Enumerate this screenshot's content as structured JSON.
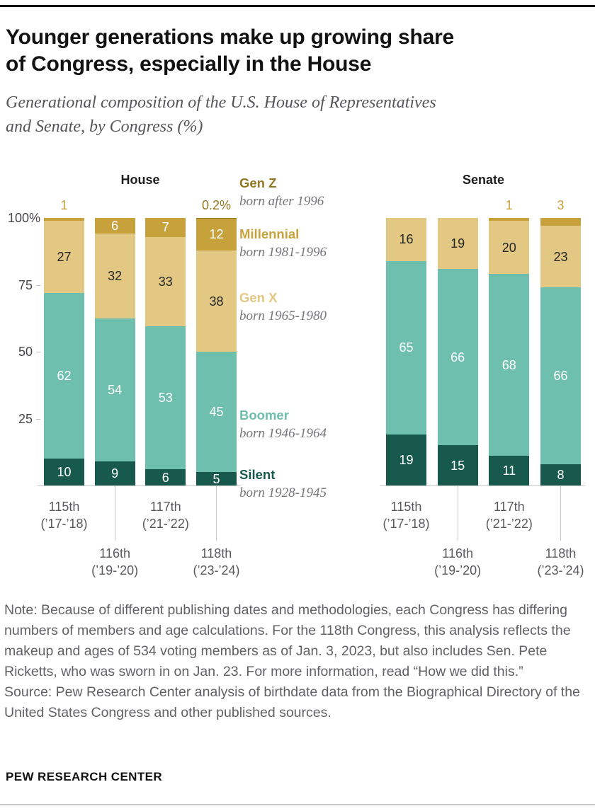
{
  "brand": "PEW RESEARCH CENTER",
  "header": {
    "title_lines": [
      "Younger generations make up growing share",
      "of Congress, especially in the House"
    ],
    "subtitle_lines": [
      "Generational composition of the U.S. House of Representatives",
      "and Senate, by Congress (%)"
    ]
  },
  "colors": {
    "silent": "#18594d",
    "boomer": "#6fbfae",
    "genx": "#e2c883",
    "millennial": "#c7a23c",
    "genz": "#927723",
    "label_dark": "#26262a",
    "axis": "#c8c8c8"
  },
  "legend": [
    {
      "key": "genz",
      "name": "Gen Z",
      "detail": "born after 1996"
    },
    {
      "key": "millennial",
      "name": "Millennial",
      "detail": "born 1981-1996"
    },
    {
      "key": "genx",
      "name": "Gen X",
      "detail": "born 1965-1980"
    },
    {
      "key": "boomer",
      "name": "Boomer",
      "detail": "born 1946-1964"
    },
    {
      "key": "silent",
      "name": "Silent",
      "detail": "born 1928-1945"
    }
  ],
  "chart_data": {
    "type": "bar",
    "stacked": true,
    "unit": "%",
    "ylim": [
      0,
      100
    ],
    "min_inside_label": 5,
    "yticks": [
      {
        "label": "100%",
        "value": 100
      },
      {
        "label": "75",
        "value": 75
      },
      {
        "label": "50",
        "value": 50
      },
      {
        "label": "25",
        "value": 25
      }
    ],
    "series_order": [
      "silent",
      "boomer",
      "genx",
      "millennial",
      "genz"
    ],
    "panels": [
      {
        "title": "House",
        "bars": [
          {
            "category": "115th",
            "years": "(’17-’18)",
            "staggered": false,
            "values": {
              "silent": 10,
              "boomer": 62,
              "genx": 27,
              "millennial": 1,
              "genz": 0
            },
            "top_label": {
              "text": "1",
              "series": "millennial"
            }
          },
          {
            "category": "116th",
            "years": "(’19-’20)",
            "staggered": true,
            "values": {
              "silent": 9,
              "boomer": 54,
              "genx": 32,
              "millennial": 6,
              "genz": 0
            }
          },
          {
            "category": "117th",
            "years": "(’21-’22)",
            "staggered": false,
            "values": {
              "silent": 6,
              "boomer": 53,
              "genx": 33,
              "millennial": 7,
              "genz": 0
            }
          },
          {
            "category": "118th",
            "years": "(’23-’24)",
            "staggered": true,
            "values": {
              "silent": 5,
              "boomer": 45,
              "genx": 38,
              "millennial": 12,
              "genz": 0.2
            },
            "top_label": {
              "text": "0.2%",
              "series": "genz"
            }
          }
        ]
      },
      {
        "title": "Senate",
        "bars": [
          {
            "category": "115th",
            "years": "(’17-’18)",
            "staggered": false,
            "values": {
              "silent": 19,
              "boomer": 65,
              "genx": 16,
              "millennial": 0,
              "genz": 0
            }
          },
          {
            "category": "116th",
            "years": "(’19-’20)",
            "staggered": true,
            "values": {
              "silent": 15,
              "boomer": 66,
              "genx": 19,
              "millennial": 0,
              "genz": 0
            }
          },
          {
            "category": "117th",
            "years": "(’21-’22)",
            "staggered": false,
            "values": {
              "silent": 11,
              "boomer": 68,
              "genx": 20,
              "millennial": 1,
              "genz": 0
            },
            "top_label": {
              "text": "1",
              "series": "millennial"
            }
          },
          {
            "category": "118th",
            "years": "(’23-’24)",
            "staggered": true,
            "values": {
              "silent": 8,
              "boomer": 66,
              "genx": 23,
              "millennial": 3,
              "genz": 0
            },
            "top_label": {
              "text": "3",
              "series": "millennial"
            }
          }
        ]
      }
    ]
  },
  "note": "Note: Because of different publishing dates and methodologies, each Congress has differing numbers of members and age calculations. For the 118th Congress, this analysis reflects the makeup and ages of 534 voting members as of Jan. 3, 2023, but also includes Sen. Pete Ricketts, who was sworn in on Jan. 23. For more information, read “How we did this.”",
  "source": "Source: Pew Research Center analysis of birthdate data from the Biographical Directory of the United States Congress and other published sources."
}
